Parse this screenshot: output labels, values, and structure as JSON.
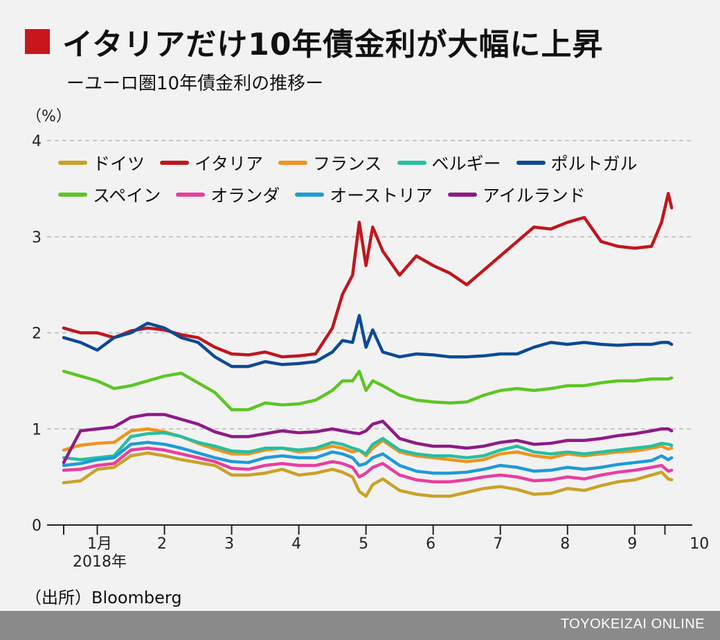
{
  "header": {
    "title": "イタリアだけ10年債金利が大幅に上昇",
    "subtitle": "ーユーロ圏10年債金利の推移ー"
  },
  "source": "（出所）Bloomberg",
  "footer": "TOYOKEIZAI ONLINE",
  "colors": {
    "accent": "#c8161d",
    "footer_bar": "#8a8a8a"
  },
  "chart_data": {
    "type": "line",
    "title": "イタリアだけ10年債金利が大幅に上昇",
    "subtitle": "ーユーロ圏10年債金利の推移ー",
    "ylabel": "（%）",
    "ylim": [
      0,
      4
    ],
    "yticks": [
      "0",
      "1",
      "2",
      "3",
      "4"
    ],
    "xticks": [
      {
        "label": "1月",
        "sublabel": "2018年",
        "x": 0
      },
      {
        "label": "2",
        "x": 1
      },
      {
        "label": "3",
        "x": 2
      },
      {
        "label": "4",
        "x": 3
      },
      {
        "label": "5",
        "x": 4
      },
      {
        "label": "6",
        "x": 5
      },
      {
        "label": "7",
        "x": 6
      },
      {
        "label": "8",
        "x": 7
      },
      {
        "label": "9",
        "x": 8
      },
      {
        "label": "10",
        "x": 9
      }
    ],
    "xlim": [
      0,
      9.1
    ],
    "grid": true,
    "legend_position": "top",
    "x": [
      0,
      0.25,
      0.5,
      0.75,
      1,
      1.25,
      1.5,
      1.75,
      2,
      2.25,
      2.5,
      2.75,
      3,
      3.25,
      3.5,
      3.75,
      4,
      4.15,
      4.3,
      4.4,
      4.5,
      4.6,
      4.75,
      5,
      5.25,
      5.5,
      5.75,
      6,
      6.25,
      6.5,
      6.75,
      7,
      7.25,
      7.5,
      7.75,
      8,
      8.25,
      8.5,
      8.75,
      8.9,
      9,
      9.05
    ],
    "series": [
      {
        "name": "ドイツ",
        "color": "#c9a227",
        "values": [
          0.44,
          0.46,
          0.58,
          0.6,
          0.72,
          0.75,
          0.72,
          0.68,
          0.65,
          0.62,
          0.52,
          0.52,
          0.54,
          0.58,
          0.52,
          0.54,
          0.58,
          0.55,
          0.5,
          0.35,
          0.3,
          0.42,
          0.48,
          0.36,
          0.32,
          0.3,
          0.3,
          0.34,
          0.38,
          0.4,
          0.37,
          0.32,
          0.33,
          0.38,
          0.36,
          0.41,
          0.45,
          0.47,
          0.52,
          0.55,
          0.48,
          0.47
        ]
      },
      {
        "name": "イタリア",
        "color": "#c0161d",
        "values": [
          2.05,
          2.0,
          2.0,
          1.95,
          2.02,
          2.05,
          2.03,
          1.98,
          1.95,
          1.85,
          1.78,
          1.77,
          1.8,
          1.75,
          1.76,
          1.78,
          2.05,
          2.4,
          2.6,
          3.15,
          2.7,
          3.1,
          2.85,
          2.6,
          2.8,
          2.7,
          2.62,
          2.5,
          2.65,
          2.8,
          2.95,
          3.1,
          3.08,
          3.15,
          3.2,
          2.95,
          2.9,
          2.88,
          2.9,
          3.15,
          3.45,
          3.3
        ]
      },
      {
        "name": "フランス",
        "color": "#f0931e",
        "values": [
          0.78,
          0.83,
          0.85,
          0.86,
          0.98,
          1.0,
          0.97,
          0.92,
          0.85,
          0.79,
          0.74,
          0.74,
          0.78,
          0.8,
          0.76,
          0.78,
          0.82,
          0.8,
          0.76,
          0.78,
          0.72,
          0.8,
          0.88,
          0.76,
          0.72,
          0.7,
          0.68,
          0.66,
          0.68,
          0.74,
          0.76,
          0.72,
          0.7,
          0.74,
          0.72,
          0.74,
          0.76,
          0.77,
          0.8,
          0.82,
          0.79,
          0.8
        ]
      },
      {
        "name": "ベルギー",
        "color": "#26bfa0",
        "values": [
          0.7,
          0.68,
          0.7,
          0.72,
          0.92,
          0.95,
          0.96,
          0.92,
          0.86,
          0.82,
          0.77,
          0.76,
          0.8,
          0.8,
          0.78,
          0.8,
          0.86,
          0.84,
          0.8,
          0.78,
          0.74,
          0.84,
          0.9,
          0.78,
          0.74,
          0.72,
          0.72,
          0.7,
          0.72,
          0.78,
          0.82,
          0.76,
          0.74,
          0.76,
          0.74,
          0.76,
          0.78,
          0.8,
          0.82,
          0.85,
          0.84,
          0.83
        ]
      },
      {
        "name": "ポルトガル",
        "color": "#0c4a96",
        "values": [
          1.95,
          1.9,
          1.82,
          1.95,
          2.0,
          2.1,
          2.05,
          1.95,
          1.9,
          1.75,
          1.65,
          1.65,
          1.7,
          1.67,
          1.68,
          1.7,
          1.8,
          1.92,
          1.9,
          2.18,
          1.85,
          2.03,
          1.8,
          1.75,
          1.78,
          1.77,
          1.75,
          1.75,
          1.76,
          1.78,
          1.78,
          1.85,
          1.9,
          1.88,
          1.9,
          1.88,
          1.87,
          1.88,
          1.88,
          1.9,
          1.9,
          1.88
        ]
      },
      {
        "name": "スペイン",
        "color": "#5cc623",
        "values": [
          1.6,
          1.55,
          1.5,
          1.42,
          1.45,
          1.5,
          1.55,
          1.58,
          1.48,
          1.38,
          1.2,
          1.2,
          1.27,
          1.25,
          1.26,
          1.3,
          1.4,
          1.5,
          1.5,
          1.6,
          1.4,
          1.5,
          1.45,
          1.35,
          1.3,
          1.28,
          1.27,
          1.28,
          1.35,
          1.4,
          1.42,
          1.4,
          1.42,
          1.45,
          1.45,
          1.48,
          1.5,
          1.5,
          1.52,
          1.52,
          1.52,
          1.53
        ]
      },
      {
        "name": "オランダ",
        "color": "#e83e9e",
        "values": [
          0.57,
          0.58,
          0.62,
          0.64,
          0.78,
          0.8,
          0.78,
          0.74,
          0.7,
          0.66,
          0.59,
          0.58,
          0.62,
          0.64,
          0.62,
          0.62,
          0.66,
          0.64,
          0.6,
          0.5,
          0.54,
          0.6,
          0.64,
          0.52,
          0.47,
          0.45,
          0.45,
          0.47,
          0.5,
          0.52,
          0.5,
          0.46,
          0.47,
          0.5,
          0.48,
          0.52,
          0.55,
          0.57,
          0.6,
          0.62,
          0.56,
          0.57
        ]
      },
      {
        "name": "オーストリア",
        "color": "#1e9bd7",
        "values": [
          0.62,
          0.64,
          0.68,
          0.7,
          0.84,
          0.86,
          0.84,
          0.8,
          0.75,
          0.7,
          0.66,
          0.65,
          0.7,
          0.72,
          0.7,
          0.7,
          0.76,
          0.74,
          0.7,
          0.62,
          0.64,
          0.7,
          0.74,
          0.62,
          0.56,
          0.54,
          0.54,
          0.55,
          0.58,
          0.62,
          0.6,
          0.56,
          0.57,
          0.6,
          0.58,
          0.6,
          0.63,
          0.65,
          0.67,
          0.72,
          0.68,
          0.7
        ]
      },
      {
        "name": "アイルランド",
        "color": "#8e1b86",
        "values": [
          0.65,
          0.98,
          1.0,
          1.02,
          1.12,
          1.15,
          1.15,
          1.1,
          1.05,
          0.97,
          0.92,
          0.92,
          0.95,
          0.98,
          0.96,
          0.97,
          1.0,
          0.98,
          0.96,
          0.95,
          0.98,
          1.05,
          1.08,
          0.9,
          0.85,
          0.82,
          0.82,
          0.8,
          0.82,
          0.86,
          0.88,
          0.84,
          0.85,
          0.88,
          0.88,
          0.9,
          0.93,
          0.95,
          0.98,
          1.0,
          1.0,
          0.98
        ]
      }
    ]
  }
}
